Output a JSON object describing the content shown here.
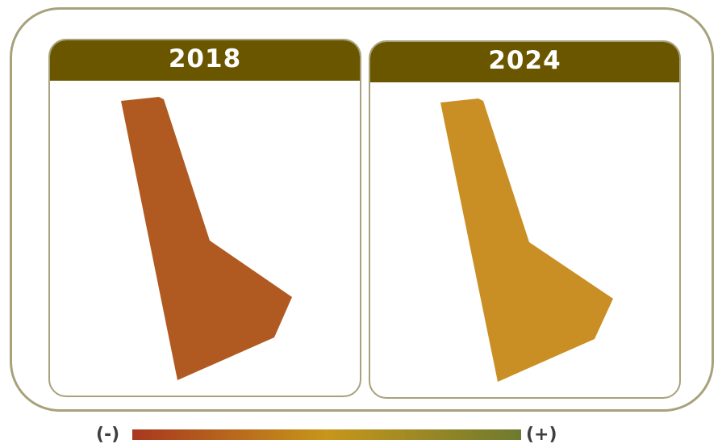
{
  "panels": [
    {
      "year": "2018",
      "fill_color": "#b05a22"
    },
    {
      "year": "2024",
      "fill_color": "#c98f24"
    }
  ],
  "legend": {
    "min_label": "(-)",
    "max_label": "(+)",
    "gradient_colors": [
      "#a8371f",
      "#c7961a",
      "#6e7a2f"
    ]
  },
  "colors": {
    "frame_border": "#a8a27c",
    "header_bg": "#6b5600"
  }
}
